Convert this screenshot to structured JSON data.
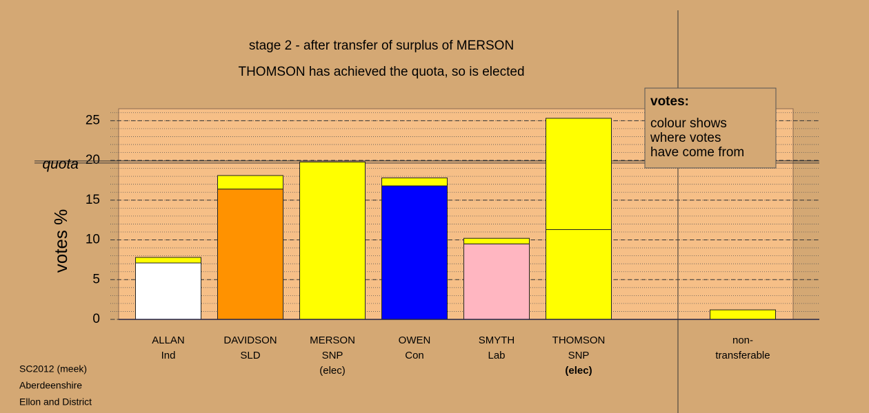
{
  "chart_data": {
    "type": "stacked-bar",
    "title": "stage 2 - after transfer of surplus of MERSON",
    "subtitle": "THOMSON has achieved the quota, so is elected",
    "ylabel": "votes %",
    "quota_label": "quota",
    "quota": 19.8,
    "ylim": [
      0,
      26.5
    ],
    "yticks": [
      0,
      5,
      10,
      15,
      20,
      25
    ],
    "minor_grid_step": 1,
    "bars": [
      {
        "label": [
          "ALLAN",
          "Ind"
        ],
        "segments": [
          7.1,
          0.7
        ],
        "colors": [
          "#ffffff",
          "#ffff00"
        ]
      },
      {
        "label": [
          "DAVIDSON",
          "SLD"
        ],
        "segments": [
          16.4,
          1.7
        ],
        "colors": [
          "#ff9200",
          "#ffff00"
        ]
      },
      {
        "label": [
          "MERSON",
          "SNP",
          "(elec)"
        ],
        "segments": [
          19.8
        ],
        "colors": [
          "#ffff00"
        ]
      },
      {
        "label": [
          "OWEN",
          "Con"
        ],
        "segments": [
          16.8,
          1.0
        ],
        "colors": [
          "#0000ff",
          "#ffff00"
        ]
      },
      {
        "label": [
          "SMYTH",
          "Lab"
        ],
        "segments": [
          9.5,
          0.7
        ],
        "colors": [
          "#ffb6c1",
          "#ffff00"
        ]
      },
      {
        "label": [
          "THOMSON",
          "SNP",
          "(elec)"
        ],
        "segments": [
          11.3,
          14.0
        ],
        "colors": [
          "#ffff00",
          "#ffff00"
        ],
        "elected_bold": true
      },
      null,
      {
        "label": [
          "non-",
          "transferable"
        ],
        "segments": [
          1.2
        ],
        "colors": [
          "#ffff00"
        ]
      }
    ],
    "legend": {
      "title": "votes:",
      "lines": [
        "colour shows",
        "where votes",
        "have come from"
      ]
    },
    "footnote": [
      "SC2012 (meek)",
      "Aberdeenshire",
      "Ellon and District"
    ]
  }
}
